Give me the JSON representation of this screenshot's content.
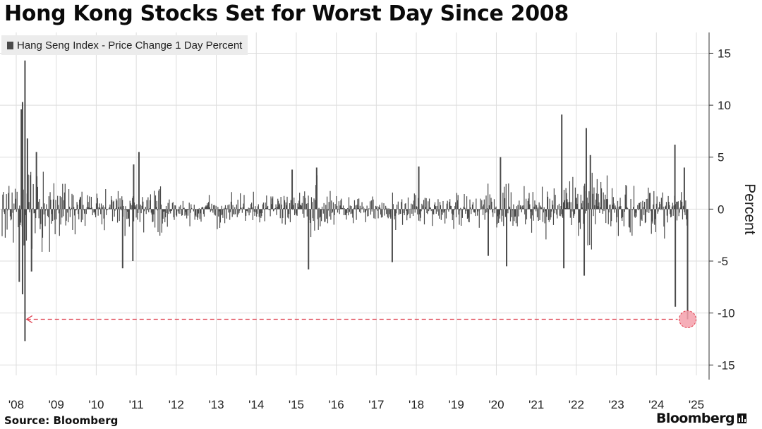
{
  "title": "Hong Kong Stocks Set for Worst Day Since 2008",
  "legend": {
    "label": "Hang Seng Index - Price Change 1 Day Percent"
  },
  "source": "Source: Bloomberg",
  "brand": "Bloomberg",
  "colors": {
    "series": "#4a4a4a",
    "grid": "#dddddd",
    "highlight": "#f4a0ac",
    "dash": "#e0404f"
  },
  "chart_data": {
    "type": "bar",
    "title": "Hong Kong Stocks Set for Worst Day Since 2008",
    "series": [
      {
        "name": "Hang Seng Index - Price Change 1 Day Percent"
      }
    ],
    "xlabel": "",
    "ylabel": "Percent",
    "xlim": [
      2008.0,
      2024.78
    ],
    "ylim": [
      -16,
      17
    ],
    "yticks": [
      15,
      10,
      5,
      0,
      -5,
      -10,
      -15
    ],
    "ytick_labels": [
      "15",
      "10",
      "5",
      "0",
      "-5",
      "-10",
      "-15"
    ],
    "xticks": [
      2008,
      2009,
      2010,
      2011,
      2012,
      2013,
      2014,
      2015,
      2016,
      2017,
      2018,
      2019,
      2020,
      2021,
      2022,
      2023,
      2024,
      2025
    ],
    "xtick_labels": [
      "'08",
      "'09",
      "'10",
      "'11",
      "'12",
      "'13",
      "'14",
      "'15",
      "'16",
      "'17",
      "'18",
      "'19",
      "'20",
      "'21",
      "'22",
      "'23",
      "'24",
      "'25"
    ],
    "volatility_regimes": [
      {
        "from": 2008.0,
        "to": 2008.5,
        "typical_abs_change": 1.6
      },
      {
        "from": 2008.5,
        "to": 2009.2,
        "typical_abs_change": 2.3
      },
      {
        "from": 2009.2,
        "to": 2010.0,
        "typical_abs_change": 1.2
      },
      {
        "from": 2010.0,
        "to": 2011.5,
        "typical_abs_change": 0.8
      },
      {
        "from": 2011.5,
        "to": 2012.0,
        "typical_abs_change": 1.5
      },
      {
        "from": 2012.0,
        "to": 2015.4,
        "typical_abs_change": 0.7
      },
      {
        "from": 2015.4,
        "to": 2016.2,
        "typical_abs_change": 1.4
      },
      {
        "from": 2016.2,
        "to": 2020.1,
        "typical_abs_change": 0.75
      },
      {
        "from": 2020.1,
        "to": 2020.5,
        "typical_abs_change": 1.2
      },
      {
        "from": 2020.5,
        "to": 2021.8,
        "typical_abs_change": 0.95
      },
      {
        "from": 2021.8,
        "to": 2023.1,
        "typical_abs_change": 1.6
      },
      {
        "from": 2023.1,
        "to": 2024.78,
        "typical_abs_change": 1.1
      }
    ],
    "notable_moves": [
      {
        "x": 2008.56,
        "y": 14.3
      },
      {
        "x": 2008.5,
        "y": 10.3
      },
      {
        "x": 2008.47,
        "y": 9.6
      },
      {
        "x": 2008.62,
        "y": 6.8
      },
      {
        "x": 2008.84,
        "y": 5.5
      },
      {
        "x": 2008.56,
        "y": -12.7
      },
      {
        "x": 2008.5,
        "y": -8.2
      },
      {
        "x": 2008.42,
        "y": -7.0
      },
      {
        "x": 2008.72,
        "y": -6.0
      },
      {
        "x": 2011.35,
        "y": 5.5
      },
      {
        "x": 2011.22,
        "y": 4.3
      },
      {
        "x": 2010.95,
        "y": -5.7
      },
      {
        "x": 2011.2,
        "y": -5.0
      },
      {
        "x": 2015.7,
        "y": 4.0
      },
      {
        "x": 2015.1,
        "y": 3.8
      },
      {
        "x": 2015.5,
        "y": -5.8
      },
      {
        "x": 2017.55,
        "y": -5.1
      },
      {
        "x": 2018.2,
        "y": 4.1
      },
      {
        "x": 2020.2,
        "y": 5.0
      },
      {
        "x": 2020.35,
        "y": -5.5
      },
      {
        "x": 2019.9,
        "y": -4.5
      },
      {
        "x": 2021.7,
        "y": 9.1
      },
      {
        "x": 2021.75,
        "y": -5.7
      },
      {
        "x": 2022.3,
        "y": 7.8
      },
      {
        "x": 2022.4,
        "y": 5.2
      },
      {
        "x": 2022.25,
        "y": -6.4
      },
      {
        "x": 2024.47,
        "y": 6.2
      },
      {
        "x": 2024.48,
        "y": -9.4
      },
      {
        "x": 2024.7,
        "y": 4.0
      },
      {
        "x": 2024.78,
        "y": -10.6
      }
    ],
    "annotations": [
      {
        "type": "highlight-point",
        "x": 2024.78,
        "y": -10.6
      },
      {
        "type": "dashed-reference-line",
        "y": -10.6,
        "from_x": 2008.6,
        "to_x": 2024.78,
        "arrow": "left"
      }
    ]
  }
}
